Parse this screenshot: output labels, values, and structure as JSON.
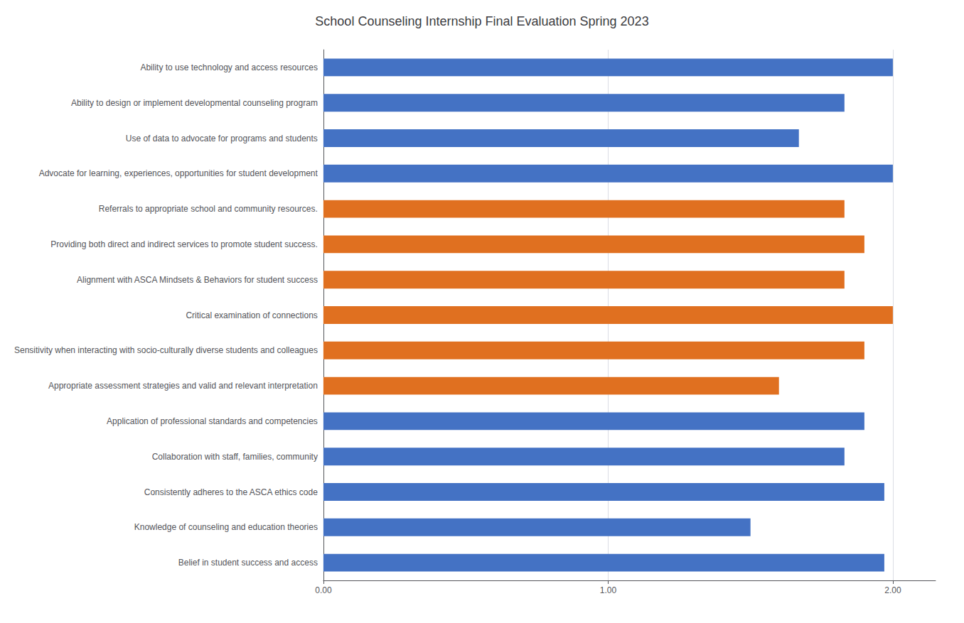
{
  "chart_data": {
    "type": "bar",
    "orientation": "horizontal",
    "title": "School Counseling Internship Final Evaluation Spring 2023",
    "categories": [
      "Belief in student success and access",
      "Knowledge of counseling and education theories",
      "Consistently adheres to the ASCA ethics code",
      "Collaboration with staff, families, community",
      "Application of professional standards and competencies",
      "Appropriate assessment strategies and valid and relevant interpretation",
      "Sensitivity when interacting with socio-culturally diverse students and colleagues",
      "Critical examination of connections",
      "Alignment with ASCA Mindsets & Behaviors for student success",
      "Providing both direct and indirect services to promote student success.",
      "Referrals to appropriate school and community resources.",
      "Advocate for learning, experiences, opportunities for student development",
      "Use of data to advocate for programs and students",
      "Ability to design or implement developmental counseling program",
      "Ability to use technology and access resources"
    ],
    "values": [
      1.97,
      1.5,
      1.97,
      1.83,
      1.9,
      1.6,
      1.9,
      2.0,
      1.83,
      1.9,
      1.83,
      2.0,
      1.67,
      1.83,
      2.0
    ],
    "colors": [
      "#4472C4",
      "#4472C4",
      "#4472C4",
      "#4472C4",
      "#4472C4",
      "#E07020",
      "#E07020",
      "#E07020",
      "#E07020",
      "#E07020",
      "#E07020",
      "#4472C4",
      "#4472C4",
      "#4472C4",
      "#4472C4"
    ],
    "xlim": [
      0,
      2.15
    ],
    "xticks": [
      {
        "value": 0.0,
        "label": "0.00"
      },
      {
        "value": 1.0,
        "label": "1.00"
      },
      {
        "value": 2.0,
        "label": "2.00"
      }
    ],
    "grid": true
  }
}
